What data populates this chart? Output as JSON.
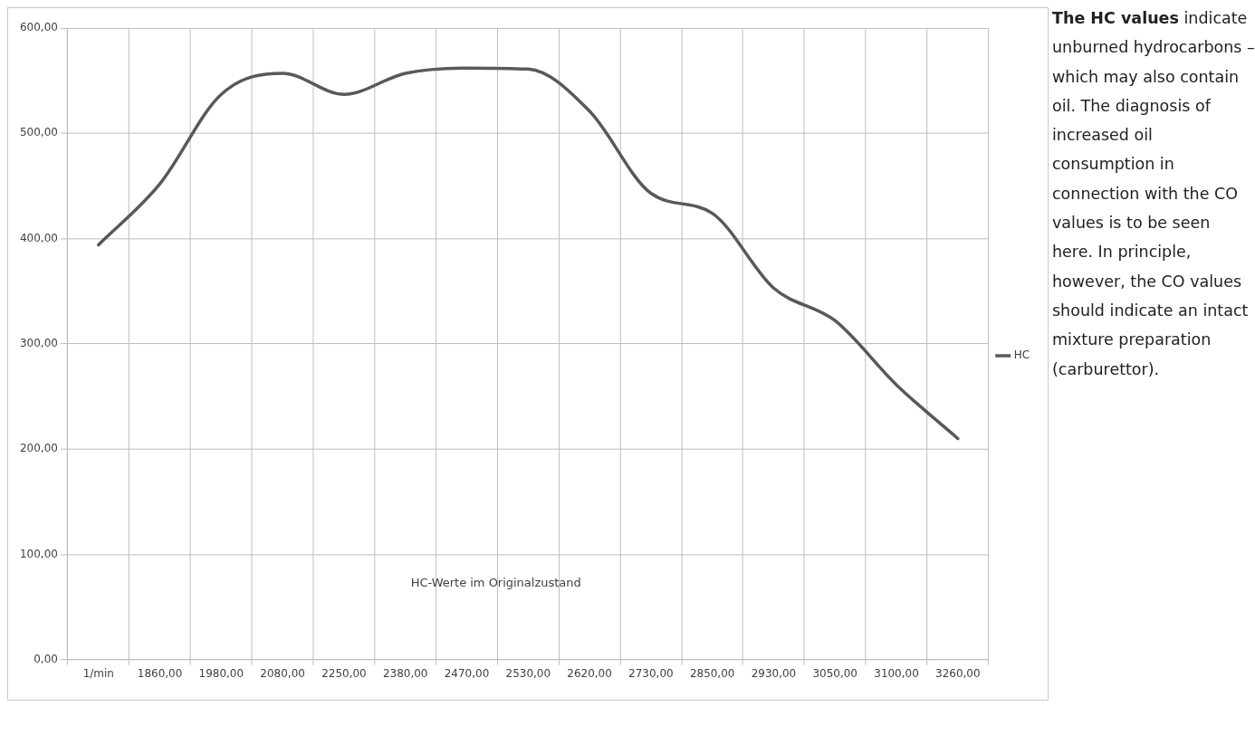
{
  "chart_data": {
    "type": "line",
    "categories": [
      "1/min",
      "1860,00",
      "1980,00",
      "2080,00",
      "2250,00",
      "2380,00",
      "2470,00",
      "2530,00",
      "2620,00",
      "2730,00",
      "2850,00",
      "2930,00",
      "3050,00",
      "3100,00",
      "3260,00"
    ],
    "series": [
      {
        "name": "HC",
        "color": "#595959",
        "values": [
          394,
          452,
          537,
          557,
          537,
          557,
          562,
          561,
          521,
          443,
          424,
          353,
          322,
          261,
          210
        ]
      }
    ],
    "ylim": [
      0,
      600
    ],
    "yticks": [
      {
        "value": 0,
        "label": "0,00"
      },
      {
        "value": 100,
        "label": "100,00"
      },
      {
        "value": 200,
        "label": "200,00"
      },
      {
        "value": 300,
        "label": "300,00"
      },
      {
        "value": 400,
        "label": "400,00"
      },
      {
        "value": 500,
        "label": "500,00"
      },
      {
        "value": 600,
        "label": "600,00"
      }
    ],
    "grid": true,
    "legend": "right",
    "marker": "none",
    "line_style": "solid",
    "annotations": [
      "HC-Werte im Originalzustand",
      "The HC values",
      "indicate unburned hydrocarbons – which may also contain oil. The diagnosis of increased oil consumption in connection with the CO values is to be seen here. In principle, however, the CO values should indicate an intact mixture preparation (carburettor)."
    ]
  }
}
